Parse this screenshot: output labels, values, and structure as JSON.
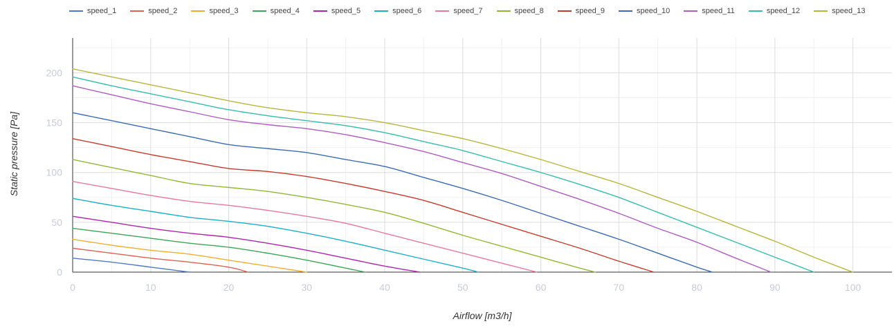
{
  "chart_data": {
    "type": "line",
    "xlabel": "Airflow [m3/h]",
    "ylabel": "Static pressure [Pa]",
    "xlim": [
      0,
      105
    ],
    "ylim": [
      0,
      235
    ],
    "x_ticks": [
      0,
      10,
      20,
      30,
      40,
      50,
      60,
      70,
      80,
      90,
      100
    ],
    "y_ticks": [
      0,
      50,
      100,
      150,
      200
    ],
    "grid": true,
    "legend_position": "top",
    "series": [
      {
        "name": "speed_1",
        "color": "#4e79c7",
        "points": [
          [
            0,
            14
          ],
          [
            5,
            10
          ],
          [
            10,
            5
          ],
          [
            15,
            0
          ]
        ]
      },
      {
        "name": "speed_2",
        "color": "#e0604f",
        "points": [
          [
            0,
            24
          ],
          [
            5,
            19
          ],
          [
            10,
            14
          ],
          [
            15,
            10
          ],
          [
            20,
            5
          ],
          [
            22.5,
            0
          ]
        ]
      },
      {
        "name": "speed_3",
        "color": "#f5ac2c",
        "points": [
          [
            0,
            33
          ],
          [
            5,
            27
          ],
          [
            10,
            22
          ],
          [
            15,
            18
          ],
          [
            20,
            12
          ],
          [
            25,
            6
          ],
          [
            30,
            0
          ]
        ]
      },
      {
        "name": "speed_4",
        "color": "#3aa655",
        "points": [
          [
            0,
            44
          ],
          [
            5,
            39
          ],
          [
            10,
            34
          ],
          [
            15,
            29
          ],
          [
            20,
            25
          ],
          [
            25,
            19
          ],
          [
            30,
            12
          ],
          [
            35,
            4
          ],
          [
            37.5,
            0
          ]
        ]
      },
      {
        "name": "speed_5",
        "color": "#b023b0",
        "points": [
          [
            0,
            56
          ],
          [
            5,
            50
          ],
          [
            10,
            44
          ],
          [
            15,
            39
          ],
          [
            20,
            35
          ],
          [
            25,
            29
          ],
          [
            30,
            22
          ],
          [
            35,
            14
          ],
          [
            40,
            6
          ],
          [
            44.5,
            0
          ]
        ]
      },
      {
        "name": "speed_6",
        "color": "#1ab0c9",
        "points": [
          [
            0,
            74
          ],
          [
            5,
            67
          ],
          [
            10,
            61
          ],
          [
            15,
            55
          ],
          [
            20,
            51
          ],
          [
            25,
            46
          ],
          [
            30,
            39
          ],
          [
            35,
            31
          ],
          [
            40,
            22
          ],
          [
            45,
            13
          ],
          [
            50,
            4
          ],
          [
            52,
            0
          ]
        ]
      },
      {
        "name": "speed_7",
        "color": "#e9779b",
        "points": [
          [
            0,
            91
          ],
          [
            5,
            84
          ],
          [
            10,
            77
          ],
          [
            15,
            71
          ],
          [
            20,
            67
          ],
          [
            25,
            62
          ],
          [
            30,
            56
          ],
          [
            35,
            49
          ],
          [
            40,
            39
          ],
          [
            45,
            29
          ],
          [
            50,
            19
          ],
          [
            55,
            9
          ],
          [
            59.5,
            0
          ]
        ]
      },
      {
        "name": "speed_8",
        "color": "#8fb931",
        "points": [
          [
            0,
            113
          ],
          [
            5,
            105
          ],
          [
            10,
            97
          ],
          [
            15,
            89
          ],
          [
            20,
            85
          ],
          [
            25,
            81
          ],
          [
            30,
            75
          ],
          [
            35,
            68
          ],
          [
            40,
            60
          ],
          [
            45,
            49
          ],
          [
            50,
            37
          ],
          [
            55,
            26
          ],
          [
            60,
            15
          ],
          [
            65,
            4
          ],
          [
            67,
            0
          ]
        ]
      },
      {
        "name": "speed_9",
        "color": "#c63a2c",
        "points": [
          [
            0,
            134
          ],
          [
            5,
            126
          ],
          [
            10,
            118
          ],
          [
            15,
            111
          ],
          [
            20,
            104
          ],
          [
            25,
            101
          ],
          [
            30,
            96
          ],
          [
            35,
            89
          ],
          [
            40,
            81
          ],
          [
            45,
            72
          ],
          [
            50,
            60
          ],
          [
            55,
            48
          ],
          [
            60,
            36
          ],
          [
            65,
            24
          ],
          [
            70,
            11
          ],
          [
            74.5,
            0
          ]
        ]
      },
      {
        "name": "speed_10",
        "color": "#3b6bb3",
        "points": [
          [
            0,
            160
          ],
          [
            5,
            152
          ],
          [
            10,
            144
          ],
          [
            15,
            136
          ],
          [
            20,
            128
          ],
          [
            25,
            124
          ],
          [
            30,
            120
          ],
          [
            35,
            113
          ],
          [
            40,
            106
          ],
          [
            45,
            95
          ],
          [
            50,
            84
          ],
          [
            55,
            72
          ],
          [
            60,
            59
          ],
          [
            65,
            46
          ],
          [
            70,
            33
          ],
          [
            75,
            19
          ],
          [
            80,
            5
          ],
          [
            82,
            0
          ]
        ]
      },
      {
        "name": "speed_11",
        "color": "#ae5cc2",
        "points": [
          [
            0,
            187
          ],
          [
            5,
            178
          ],
          [
            10,
            169
          ],
          [
            15,
            161
          ],
          [
            20,
            153
          ],
          [
            25,
            148
          ],
          [
            30,
            144
          ],
          [
            35,
            138
          ],
          [
            40,
            130
          ],
          [
            45,
            121
          ],
          [
            50,
            110
          ],
          [
            55,
            99
          ],
          [
            60,
            86
          ],
          [
            65,
            73
          ],
          [
            70,
            59
          ],
          [
            75,
            44
          ],
          [
            80,
            30
          ],
          [
            85,
            14
          ],
          [
            89.5,
            0
          ]
        ]
      },
      {
        "name": "speed_12",
        "color": "#34bcae",
        "points": [
          [
            0,
            196
          ],
          [
            5,
            187
          ],
          [
            10,
            179
          ],
          [
            15,
            171
          ],
          [
            20,
            163
          ],
          [
            25,
            157
          ],
          [
            30,
            152
          ],
          [
            35,
            147
          ],
          [
            40,
            140
          ],
          [
            45,
            131
          ],
          [
            50,
            122
          ],
          [
            55,
            111
          ],
          [
            60,
            100
          ],
          [
            65,
            88
          ],
          [
            70,
            75
          ],
          [
            75,
            60
          ],
          [
            80,
            45
          ],
          [
            85,
            30
          ],
          [
            90,
            15
          ],
          [
            95,
            0
          ]
        ]
      },
      {
        "name": "speed_13",
        "color": "#b8b43c",
        "points": [
          [
            0,
            204
          ],
          [
            5,
            196
          ],
          [
            10,
            188
          ],
          [
            15,
            180
          ],
          [
            20,
            172
          ],
          [
            25,
            165
          ],
          [
            30,
            160
          ],
          [
            35,
            156
          ],
          [
            40,
            150
          ],
          [
            45,
            142
          ],
          [
            50,
            134
          ],
          [
            55,
            124
          ],
          [
            60,
            113
          ],
          [
            65,
            101
          ],
          [
            70,
            89
          ],
          [
            75,
            75
          ],
          [
            80,
            61
          ],
          [
            85,
            46
          ],
          [
            90,
            31
          ],
          [
            95,
            15
          ],
          [
            100,
            0
          ]
        ]
      }
    ]
  }
}
